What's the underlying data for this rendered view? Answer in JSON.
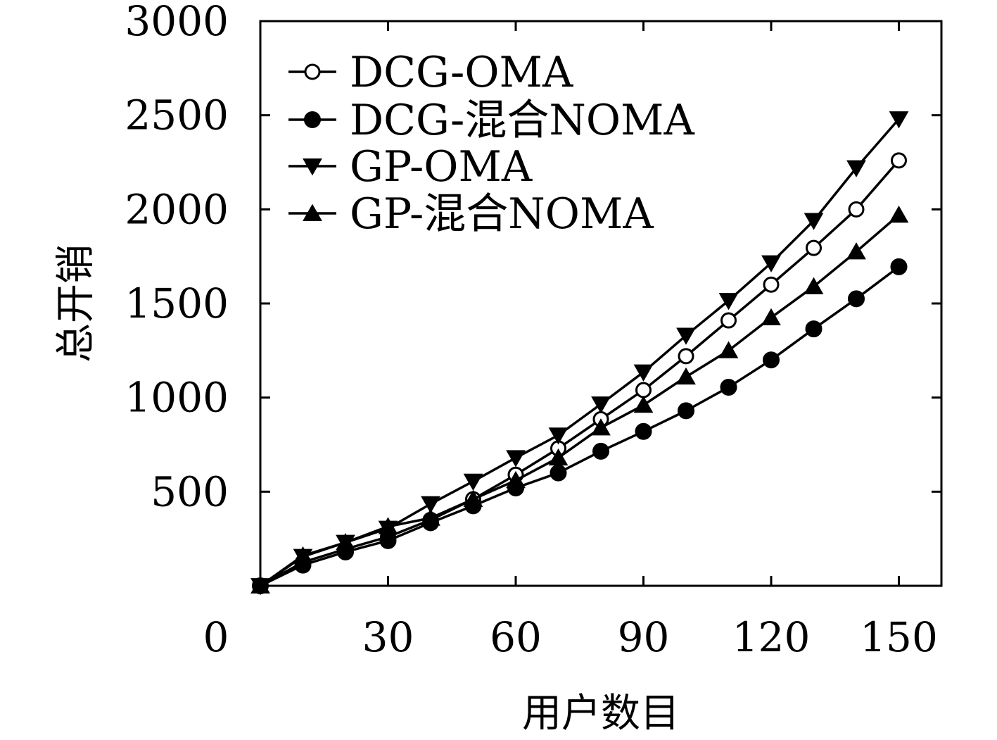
{
  "chart_data": {
    "type": "line",
    "xlabel": "用户数目",
    "ylabel": "总开销",
    "xlim": [
      0,
      160
    ],
    "ylim": [
      0,
      3000
    ],
    "x_ticks": [
      "0",
      "30",
      "60",
      "90",
      "120",
      "150"
    ],
    "y_ticks": [
      "500",
      "1000",
      "1500",
      "2000",
      "2500",
      "3000"
    ],
    "grid": false,
    "legend_position": "top-left",
    "x": [
      0,
      10,
      20,
      30,
      40,
      50,
      60,
      70,
      80,
      90,
      100,
      110,
      120,
      130,
      140,
      150
    ],
    "series": [
      {
        "name": "DCG-OMA",
        "marker": "open-circle",
        "values": [
          0,
          125,
          195,
          260,
          350,
          460,
          590,
          730,
          885,
          1040,
          1220,
          1410,
          1600,
          1795,
          2000,
          2260
        ]
      },
      {
        "name": "DCG-混合NOMA",
        "marker": "filled-circle",
        "values": [
          0,
          110,
          180,
          240,
          335,
          425,
          520,
          600,
          715,
          820,
          930,
          1055,
          1200,
          1365,
          1525,
          1695
        ]
      },
      {
        "name": "GP-OMA",
        "marker": "down-triangle",
        "values": [
          0,
          155,
          230,
          305,
          435,
          555,
          680,
          800,
          965,
          1135,
          1330,
          1515,
          1715,
          1940,
          2220,
          2480
        ]
      },
      {
        "name": "GP-混合NOMA",
        "marker": "up-triangle",
        "values": [
          0,
          160,
          230,
          315,
          360,
          460,
          560,
          680,
          840,
          960,
          1110,
          1250,
          1425,
          1590,
          1775,
          1970
        ]
      }
    ]
  }
}
